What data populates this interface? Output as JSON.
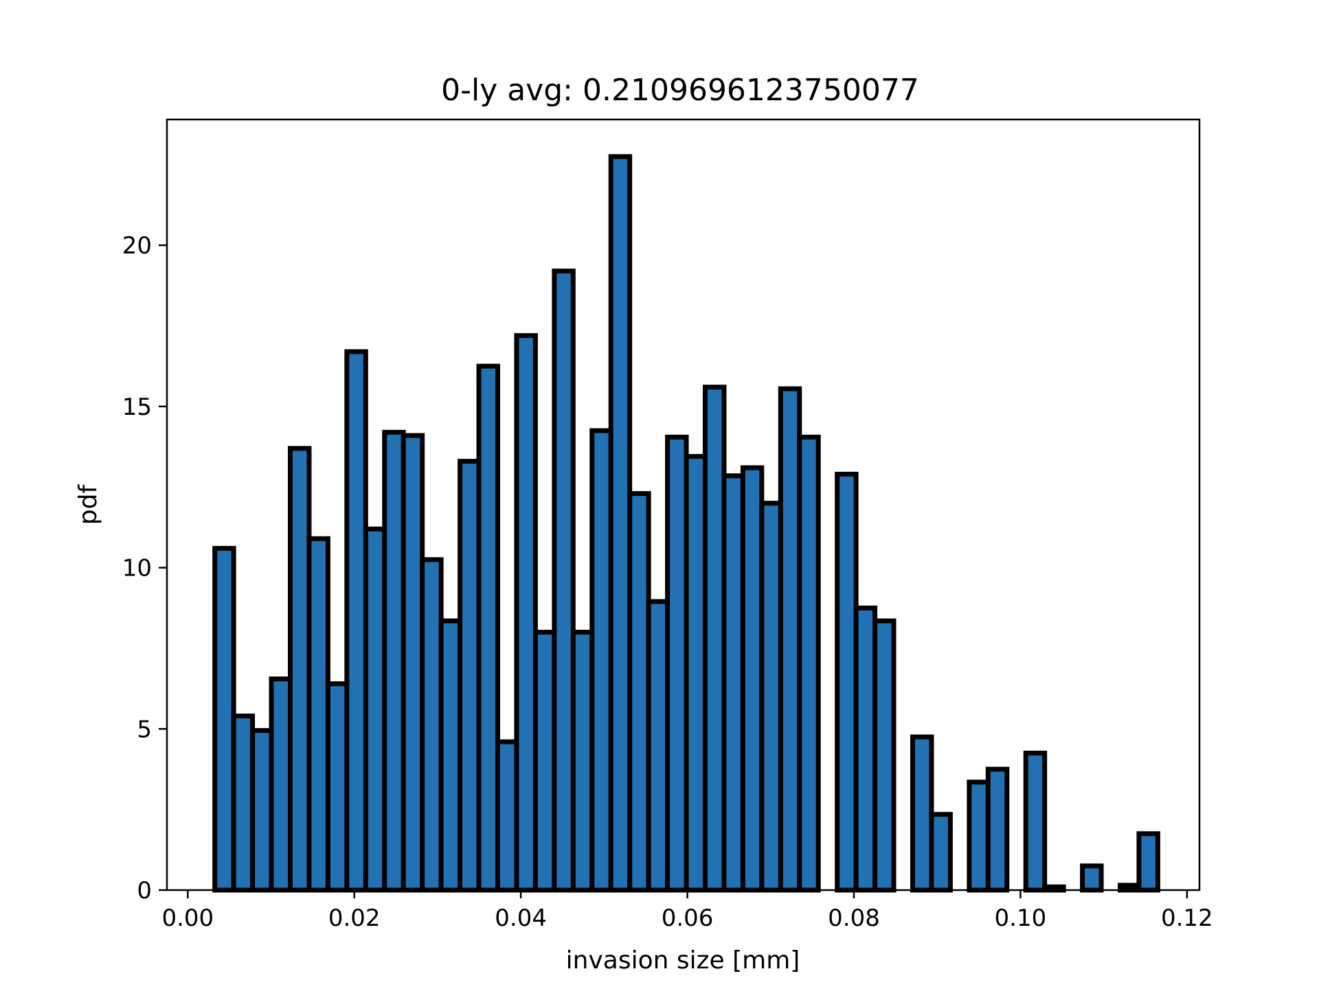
{
  "chart_data": {
    "type": "bar",
    "title": "0-ly avg: 0.2109696123750077",
    "xlabel": "invasion size [mm]",
    "ylabel": "pdf",
    "xlim": [
      -0.0025,
      0.1215
    ],
    "ylim": [
      0,
      23.9
    ],
    "xticks": [
      0.0,
      0.02,
      0.04,
      0.06,
      0.08,
      0.1,
      0.12
    ],
    "xtick_labels": [
      "0.00",
      "0.02",
      "0.04",
      "0.06",
      "0.08",
      "0.10",
      "0.12"
    ],
    "yticks": [
      0,
      5,
      10,
      15,
      20
    ],
    "ytick_labels": [
      "0",
      "5",
      "10",
      "15",
      "20"
    ],
    "bin_start": 0.00325,
    "bin_width": 0.002265,
    "values": [
      10.6,
      5.4,
      4.95,
      6.55,
      13.7,
      10.9,
      6.4,
      16.7,
      11.2,
      14.2,
      14.1,
      10.25,
      8.35,
      13.3,
      16.25,
      4.6,
      17.2,
      8.0,
      19.2,
      8.0,
      14.25,
      22.75,
      12.3,
      8.95,
      14.05,
      13.45,
      15.6,
      12.85,
      13.1,
      12.0,
      15.55,
      14.05,
      0.0,
      12.9,
      8.75,
      8.35,
      0.0,
      4.75,
      2.35,
      0.0,
      3.35,
      3.75,
      0.0,
      4.25,
      0.1,
      0.0,
      0.75,
      0.0,
      0.15,
      1.75
    ],
    "bar_color": "#2271b3",
    "edge_color": "#000000",
    "grid": false,
    "legend": "none"
  }
}
